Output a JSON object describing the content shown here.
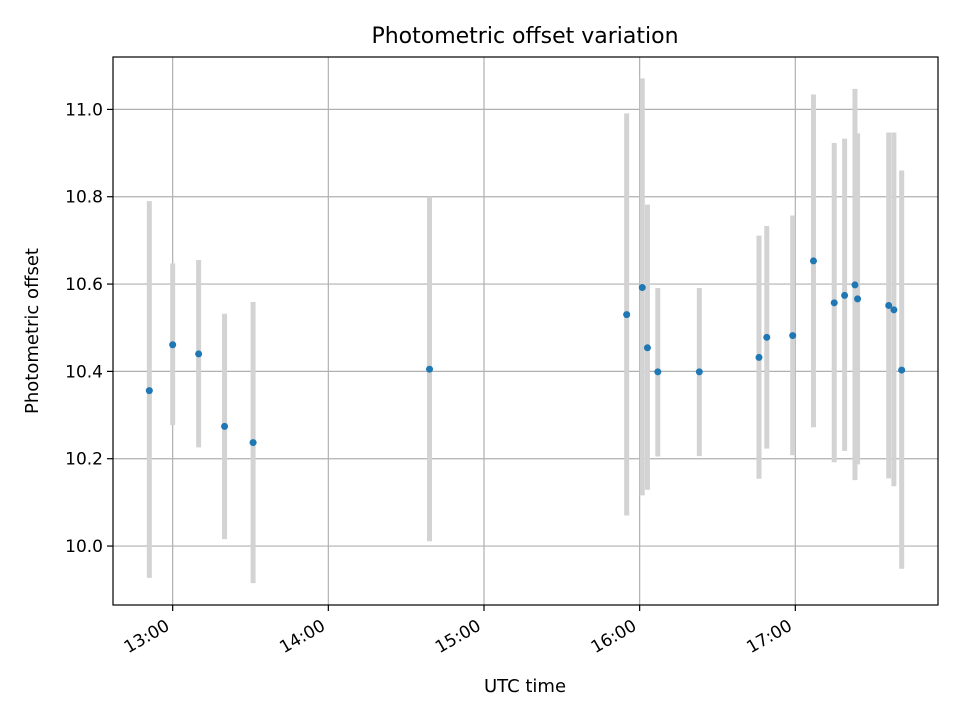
{
  "chart_data": {
    "type": "scatter",
    "title": "Photometric offset variation",
    "xlabel": "UTC time",
    "ylabel": "Photometric offset",
    "x_unit": "UTC time (HH:MM)",
    "xlim": [
      "12:37",
      "17:55"
    ],
    "ylim": [
      9.865,
      11.12
    ],
    "x_ticks": [
      "13:00",
      "14:00",
      "15:00",
      "16:00",
      "17:00"
    ],
    "y_ticks": [
      "10.0",
      "10.2",
      "10.4",
      "10.6",
      "10.8",
      "11.0"
    ],
    "grid": true,
    "marker_color": "#1f77b4",
    "errorbar_color": "#d3d3d3",
    "points": [
      {
        "x": "12:51",
        "y": 10.356,
        "ylo": 9.927,
        "yhi": 10.79
      },
      {
        "x": "13:00",
        "y": 10.461,
        "ylo": 10.277,
        "yhi": 10.647
      },
      {
        "x": "13:10",
        "y": 10.44,
        "ylo": 10.226,
        "yhi": 10.655
      },
      {
        "x": "13:20",
        "y": 10.274,
        "ylo": 10.016,
        "yhi": 10.532
      },
      {
        "x": "13:31",
        "y": 10.237,
        "ylo": 9.915,
        "yhi": 10.559
      },
      {
        "x": "14:39",
        "y": 10.405,
        "ylo": 10.011,
        "yhi": 10.8
      },
      {
        "x": "15:55",
        "y": 10.53,
        "ylo": 10.07,
        "yhi": 10.991
      },
      {
        "x": "16:01",
        "y": 10.592,
        "ylo": 10.116,
        "yhi": 11.071
      },
      {
        "x": "16:03",
        "y": 10.454,
        "ylo": 10.129,
        "yhi": 10.782
      },
      {
        "x": "16:07",
        "y": 10.399,
        "ylo": 10.205,
        "yhi": 10.591
      },
      {
        "x": "16:23",
        "y": 10.399,
        "ylo": 10.206,
        "yhi": 10.591
      },
      {
        "x": "16:46",
        "y": 10.432,
        "ylo": 10.154,
        "yhi": 10.711
      },
      {
        "x": "16:49",
        "y": 10.478,
        "ylo": 10.223,
        "yhi": 10.733
      },
      {
        "x": "16:59",
        "y": 10.482,
        "ylo": 10.208,
        "yhi": 10.757
      },
      {
        "x": "17:07",
        "y": 10.653,
        "ylo": 10.272,
        "yhi": 11.034
      },
      {
        "x": "17:15",
        "y": 10.557,
        "ylo": 10.192,
        "yhi": 10.923
      },
      {
        "x": "17:19",
        "y": 10.574,
        "ylo": 10.218,
        "yhi": 10.933
      },
      {
        "x": "17:23",
        "y": 10.598,
        "ylo": 10.151,
        "yhi": 11.047
      },
      {
        "x": "17:24",
        "y": 10.566,
        "ylo": 10.187,
        "yhi": 10.945
      },
      {
        "x": "17:36",
        "y": 10.551,
        "ylo": 10.155,
        "yhi": 10.947
      },
      {
        "x": "17:38",
        "y": 10.541,
        "ylo": 10.137,
        "yhi": 10.947
      },
      {
        "x": "17:41",
        "y": 10.403,
        "ylo": 9.948,
        "yhi": 10.86
      }
    ]
  }
}
